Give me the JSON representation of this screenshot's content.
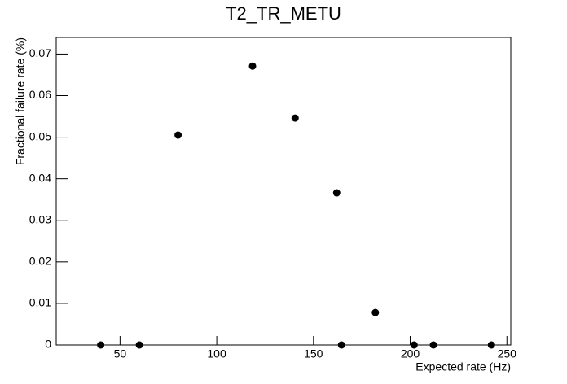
{
  "chart_data": {
    "type": "scatter",
    "title": "T2_TR_METU",
    "x_label": "Expected rate (Hz)",
    "y_label": "Fractional failure rate (%)",
    "x": [
      40,
      60,
      80,
      118.5,
      140.5,
      162,
      164.5,
      182,
      202,
      212,
      242
    ],
    "values": [
      0,
      0,
      0.0505,
      0.0671,
      0.0546,
      0.0366,
      0,
      0.0078,
      0,
      0,
      0
    ],
    "color": "#000000",
    "xlim": [
      17,
      252
    ],
    "xticks": [
      50,
      100,
      150,
      200,
      250
    ],
    "ylim": [
      0,
      0.074
    ],
    "yticks": [
      0,
      0.01,
      0.02,
      0.03,
      0.04,
      0.05,
      0.06,
      0.07
    ],
    "grid": false
  }
}
